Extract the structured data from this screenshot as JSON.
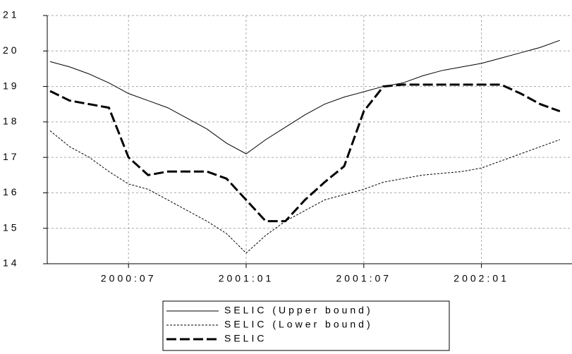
{
  "chart_data": {
    "type": "line",
    "categories": [
      "2000:03",
      "2000:04",
      "2000:05",
      "2000:06",
      "2000:07",
      "2000:08",
      "2000:09",
      "2000:10",
      "2000:11",
      "2000:12",
      "2001:01",
      "2001:02",
      "2001:03",
      "2001:04",
      "2001:05",
      "2001:06",
      "2001:07",
      "2001:08",
      "2001:09",
      "2001:10",
      "2001:11",
      "2001:12",
      "2002:01",
      "2002:02",
      "2002:03",
      "2002:04",
      "2002:05"
    ],
    "xticks": [
      "2000:07",
      "2001:01",
      "2001:07",
      "2002:01"
    ],
    "series": [
      {
        "name": "SELIC (Upper bound)",
        "color": "#000000",
        "values": [
          19.7,
          19.55,
          19.35,
          19.1,
          18.8,
          18.6,
          18.4,
          18.1,
          17.8,
          17.4,
          17.1,
          17.5,
          17.85,
          18.2,
          18.5,
          18.7,
          18.85,
          19.0,
          19.1,
          19.3,
          19.45,
          19.55,
          19.65,
          19.8,
          19.95,
          20.1,
          20.3
        ]
      },
      {
        "name": "SELIC (Lower bound)",
        "color": "#000000",
        "values": [
          17.75,
          17.3,
          17.0,
          16.6,
          16.25,
          16.1,
          15.8,
          15.5,
          15.2,
          14.85,
          14.3,
          14.8,
          15.2,
          15.5,
          15.8,
          15.95,
          16.1,
          16.3,
          16.4,
          16.5,
          16.55,
          16.6,
          16.7,
          16.9,
          17.1,
          17.3,
          17.5
        ]
      },
      {
        "name": "SELIC",
        "color": "#000000",
        "values": [
          18.87,
          18.6,
          18.5,
          18.4,
          17.0,
          16.5,
          16.6,
          16.6,
          16.6,
          16.4,
          15.8,
          15.2,
          15.2,
          15.8,
          16.3,
          16.75,
          18.3,
          19.0,
          19.05,
          19.05,
          19.05,
          19.05,
          19.05,
          19.05,
          18.8,
          18.5,
          18.3
        ]
      }
    ],
    "ylim": [
      14,
      21
    ],
    "yticks": [
      14,
      15,
      16,
      17,
      18,
      19,
      20,
      21
    ],
    "grid": true
  }
}
